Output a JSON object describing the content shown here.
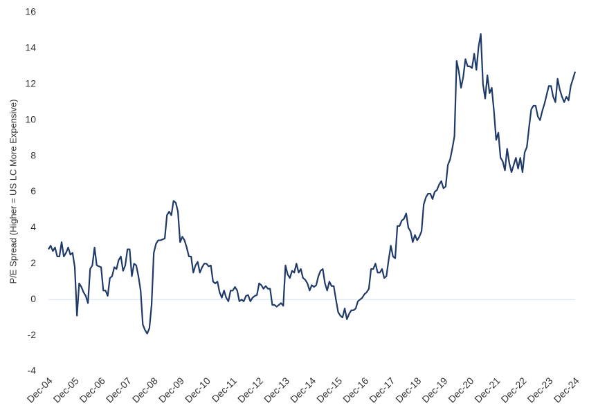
{
  "chart_data": {
    "type": "line",
    "y_label": "P/E Spread (Higher = US LC More Expensive)",
    "categories": [
      "Dec-04",
      null,
      null,
      null,
      null,
      null,
      null,
      null,
      null,
      null,
      null,
      null,
      "Dec-05",
      null,
      null,
      null,
      null,
      null,
      null,
      null,
      null,
      null,
      null,
      null,
      "Dec-06",
      null,
      null,
      null,
      null,
      null,
      null,
      null,
      null,
      null,
      null,
      null,
      "Dec-07",
      null,
      null,
      null,
      null,
      null,
      null,
      null,
      null,
      null,
      null,
      null,
      "Dec-08",
      null,
      null,
      null,
      null,
      null,
      null,
      null,
      null,
      null,
      null,
      null,
      "Dec-09",
      null,
      null,
      null,
      null,
      null,
      null,
      null,
      null,
      null,
      null,
      null,
      "Dec-10",
      null,
      null,
      null,
      null,
      null,
      null,
      null,
      null,
      null,
      null,
      null,
      "Dec-11",
      null,
      null,
      null,
      null,
      null,
      null,
      null,
      null,
      null,
      null,
      null,
      "Dec-12",
      null,
      null,
      null,
      null,
      null,
      null,
      null,
      null,
      null,
      null,
      null,
      "Dec-13",
      null,
      null,
      null,
      null,
      null,
      null,
      null,
      null,
      null,
      null,
      null,
      "Dec-14",
      null,
      null,
      null,
      null,
      null,
      null,
      null,
      null,
      null,
      null,
      null,
      "Dec-15",
      null,
      null,
      null,
      null,
      null,
      null,
      null,
      null,
      null,
      null,
      null,
      "Dec-16",
      null,
      null,
      null,
      null,
      null,
      null,
      null,
      null,
      null,
      null,
      null,
      "Dec-17",
      null,
      null,
      null,
      null,
      null,
      null,
      null,
      null,
      null,
      null,
      null,
      "Dec-18",
      null,
      null,
      null,
      null,
      null,
      null,
      null,
      null,
      null,
      null,
      null,
      "Dec-19",
      null,
      null,
      null,
      null,
      null,
      null,
      null,
      null,
      null,
      null,
      null,
      "Dec-20",
      null,
      null,
      null,
      null,
      null,
      null,
      null,
      null,
      null,
      null,
      null,
      "Dec-21",
      null,
      null,
      null,
      null,
      null,
      null,
      null,
      null,
      null,
      null,
      null,
      "Dec-22",
      null,
      null,
      null,
      null,
      null,
      null,
      null,
      null,
      null,
      null,
      null,
      "Dec-23",
      null,
      null,
      null,
      null,
      null,
      null,
      null,
      null,
      null,
      null,
      null,
      "Dec-24"
    ],
    "series": [
      {
        "name": "P/E Spread",
        "color": "#1f3a68",
        "values": [
          2.8,
          3.0,
          2.7,
          2.9,
          2.4,
          2.4,
          3.2,
          2.4,
          2.6,
          2.9,
          2.5,
          2.6,
          1.8,
          -0.9,
          0.9,
          0.7,
          0.4,
          0.2,
          -0.2,
          1.7,
          1.9,
          2.9,
          1.9,
          1.85,
          1.8,
          0.5,
          0.5,
          0.2,
          1.2,
          1.3,
          1.8,
          1.7,
          2.2,
          2.4,
          1.6,
          1.9,
          2.8,
          2.8,
          1.3,
          2.0,
          1.9,
          1.3,
          0.5,
          -1.4,
          -1.7,
          -1.9,
          -1.6,
          -0.3,
          2.6,
          3.1,
          3.3,
          3.3,
          3.35,
          3.4,
          4.7,
          4.9,
          4.7,
          5.5,
          5.4,
          4.9,
          3.2,
          3.5,
          3.3,
          2.9,
          2.4,
          2.4,
          1.5,
          1.9,
          2.1,
          1.5,
          1.8,
          2.0,
          2.0,
          1.85,
          1.9,
          1.0,
          0.9,
          1.0,
          0.4,
          0.1,
          0.5,
          0.1,
          -0.1,
          0.5,
          0.5,
          0.7,
          0.5,
          -0.1,
          0.0,
          -0.1,
          0.2,
          0.25,
          -0.1,
          0.1,
          0.2,
          0.25,
          0.9,
          0.8,
          0.6,
          0.75,
          0.6,
          0.6,
          -0.3,
          -0.3,
          -0.4,
          -0.3,
          -0.2,
          -0.35,
          1.9,
          1.4,
          1.2,
          1.6,
          1.5,
          2.0,
          1.5,
          1.7,
          1.2,
          1.1,
          0.9,
          0.5,
          0.8,
          0.7,
          0.8,
          1.3,
          1.6,
          1.7,
          0.9,
          0.5,
          1.0,
          0.75,
          0.75,
          0.0,
          -0.7,
          -0.9,
          -1.0,
          -0.5,
          -1.1,
          -0.8,
          -0.6,
          -0.6,
          -0.5,
          -0.1,
          0.0,
          0.1,
          0.3,
          0.4,
          0.6,
          1.7,
          1.7,
          2.0,
          1.5,
          1.5,
          1.7,
          1.2,
          1.3,
          2.2,
          3.0,
          2.4,
          2.3,
          4.1,
          4.1,
          4.4,
          4.5,
          4.8,
          4.0,
          3.8,
          3.2,
          3.6,
          3.3,
          3.5,
          3.8,
          5.3,
          5.7,
          5.9,
          5.9,
          5.6,
          6.0,
          6.1,
          6.4,
          6.6,
          6.2,
          6.3,
          7.5,
          7.8,
          8.4,
          9.1,
          13.3,
          12.7,
          11.8,
          12.4,
          13.4,
          13.0,
          13.0,
          12.9,
          13.7,
          12.8,
          14.1,
          14.8,
          12.0,
          11.2,
          12.5,
          11.5,
          11.8,
          10.5,
          8.9,
          9.3,
          7.9,
          7.7,
          7.2,
          8.4,
          7.6,
          7.1,
          7.5,
          7.9,
          7.3,
          7.9,
          7.1,
          8.2,
          8.5,
          9.6,
          10.6,
          10.8,
          10.8,
          10.2,
          10.0,
          10.5,
          10.9,
          11.4,
          11.9,
          11.9,
          11.3,
          11.0,
          12.3,
          11.7,
          11.3,
          11.0,
          11.3,
          11.1,
          11.9,
          12.3,
          12.7
        ]
      }
    ],
    "ylim": [
      -4,
      16
    ],
    "yticks": [
      -4,
      -2,
      0,
      2,
      4,
      6,
      8,
      10,
      12,
      14,
      16
    ]
  }
}
